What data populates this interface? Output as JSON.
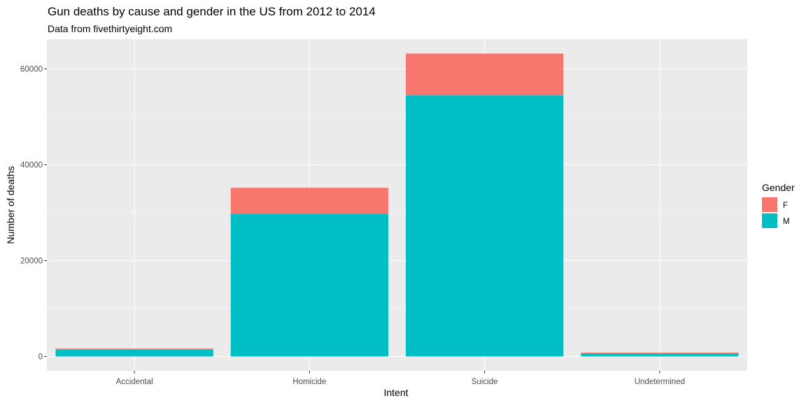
{
  "chart_data": {
    "type": "bar",
    "stacked": true,
    "title": "Gun deaths by cause and gender in the US from 2012 to 2014",
    "subtitle": "Data from fivethirtyeight.com",
    "xlabel": "Intent",
    "ylabel": "Number of deaths",
    "categories": [
      "Accidental",
      "Homicide",
      "Suicide",
      "Undetermined"
    ],
    "series": [
      {
        "name": "M",
        "color": "#00BFC4",
        "values": [
          1400,
          29800,
          54500,
          600
        ]
      },
      {
        "name": "F",
        "color": "#F8766D",
        "values": [
          250,
          5400,
          8700,
          200
        ]
      }
    ],
    "ylim": [
      0,
      66000
    ],
    "yticks": [
      0,
      20000,
      40000,
      60000
    ],
    "ytick_labels": [
      "0",
      "20000",
      "40000",
      "60000"
    ],
    "legend": {
      "title": "Gender",
      "entries": [
        "F",
        "M"
      ],
      "placement": "right"
    },
    "grid": true,
    "panel_color": "#EBEBEB",
    "grid_color": "#FFFFFF"
  }
}
